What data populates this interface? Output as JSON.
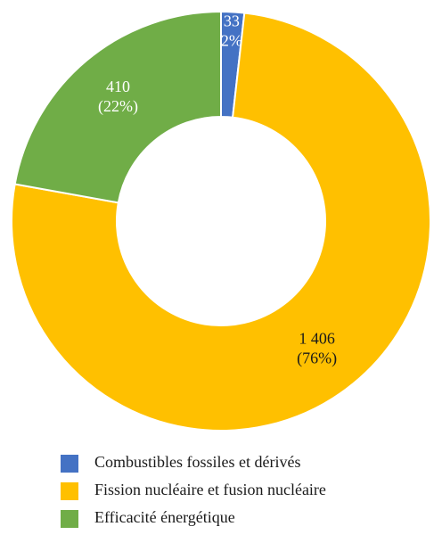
{
  "chart_data": {
    "type": "donut",
    "categories": [
      "Combustibles fossiles et dérivés",
      "Fission nucléaire et fusion nucléaire",
      "Efficacité énergétique"
    ],
    "values": [
      33,
      1406,
      410
    ],
    "value_labels": [
      "33",
      "1 406",
      "410"
    ],
    "percent_labels": [
      "(2%)",
      "(76%)",
      "(22%)"
    ],
    "colors": [
      "#4472c4",
      "#ffc000",
      "#70ad47"
    ],
    "label_colors": [
      "#ffffff",
      "#1a1a1a",
      "#ffffff"
    ],
    "legend": "bottom"
  }
}
